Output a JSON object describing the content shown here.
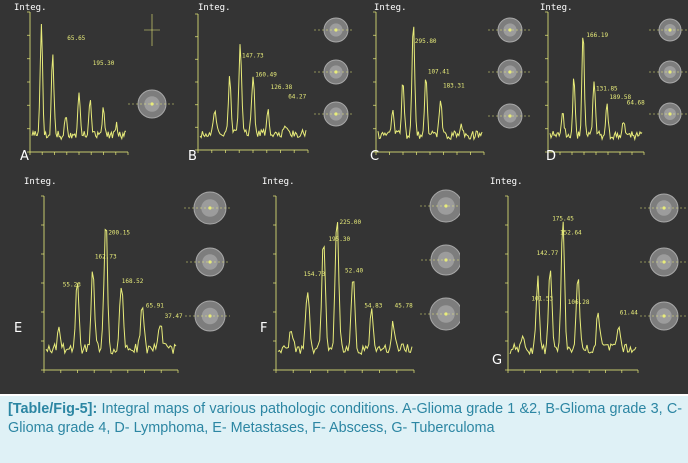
{
  "figure": {
    "panels": [
      {
        "id": "A",
        "label": "A",
        "integ": "Integ.",
        "peaks": [
          "65.65",
          "195.30"
        ]
      },
      {
        "id": "B",
        "label": "B",
        "integ": "Integ.",
        "peaks": [
          "147.73",
          "160.49",
          "126.38",
          "64.27"
        ]
      },
      {
        "id": "C",
        "label": "C",
        "integ": "Integ.",
        "peaks": [
          "295.80",
          "107.41",
          "183.31"
        ]
      },
      {
        "id": "D",
        "label": "D",
        "integ": "Integ.",
        "peaks": [
          "166.19",
          "131.85",
          "189.58",
          "64.68"
        ]
      },
      {
        "id": "E",
        "label": "E",
        "integ": "Integ.",
        "peaks": [
          "200.15",
          "162.73",
          "55.23",
          "168.52",
          "65.91",
          "37.47"
        ]
      },
      {
        "id": "F",
        "label": "F",
        "integ": "Integ.",
        "peaks": [
          "225.00",
          "195.30",
          "154.73",
          "52.40",
          "54.83",
          "45.78"
        ]
      },
      {
        "id": "G",
        "label": "G",
        "integ": "Integ.",
        "peaks": [
          "175.45",
          "152.64",
          "142.77",
          "101.53",
          "106.28",
          "61.44"
        ]
      }
    ]
  },
  "caption": {
    "label": "[Table/Fig-5]:",
    "text": " Integral maps of various pathologic conditions.  A-Glioma grade 1 &2, B-Glioma grade 3, C-Glioma grade 4, D- Lymphoma, E- Metastases, F- Abscess, G- Tuberculoma"
  },
  "colors": {
    "spectrum": "#e8ec7a",
    "caption_text": "#2c86a3",
    "caption_bg": "#dff1f6"
  }
}
